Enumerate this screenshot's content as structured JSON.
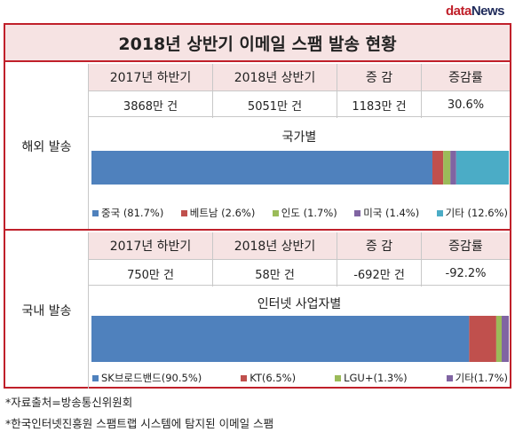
{
  "logo": {
    "part1": "data",
    "part2": "News"
  },
  "title": "2018년 상반기 이메일 스팸 발송 현황",
  "headers": [
    "2017년 하반기",
    "2018년 상반기",
    "증 감",
    "증감률"
  ],
  "overseas": {
    "label": "해외 발송",
    "values": [
      "3868만 건",
      "5051만 건",
      "1183만 건",
      "30.6%"
    ]
  },
  "domestic": {
    "label": "국내 발송",
    "values": [
      "750만 건",
      "58만 건",
      "-692만 건",
      "-92.2%"
    ]
  },
  "chart_data": [
    {
      "type": "bar",
      "title": "국가별",
      "categories": [
        "중국",
        "베트남",
        "인도",
        "미국",
        "기타"
      ],
      "legend_labels": [
        "중국 (81.7%)",
        "베트남 (2.6%)",
        "인도 (1.7%)",
        "미국 (1.4%)",
        "기타 (12.6%)"
      ],
      "values": [
        81.7,
        2.6,
        1.7,
        1.4,
        12.6
      ],
      "colors": [
        "#4f81bd",
        "#c0504d",
        "#9bbb59",
        "#8064a2",
        "#4bacc6"
      ],
      "legend": "bottom"
    },
    {
      "type": "bar",
      "title": "인터넷 사업자별",
      "categories": [
        "SK브로드밴드",
        "KT",
        "LGU+",
        "기타"
      ],
      "legend_labels": [
        "SK브로드밴드(90.5%)",
        "KT(6.5%)",
        "LGU+(1.3%)",
        "기타(1.7%)"
      ],
      "values": [
        90.5,
        6.5,
        1.3,
        1.7
      ],
      "colors": [
        "#4f81bd",
        "#c0504d",
        "#9bbb59",
        "#8064a2"
      ],
      "legend": "bottom"
    }
  ],
  "footnotes": [
    "*자료출처=방송통신위원회",
    "*한국인터넷진흥원 스팸트랩 시스템에 탐지된 이메일 스팸"
  ]
}
